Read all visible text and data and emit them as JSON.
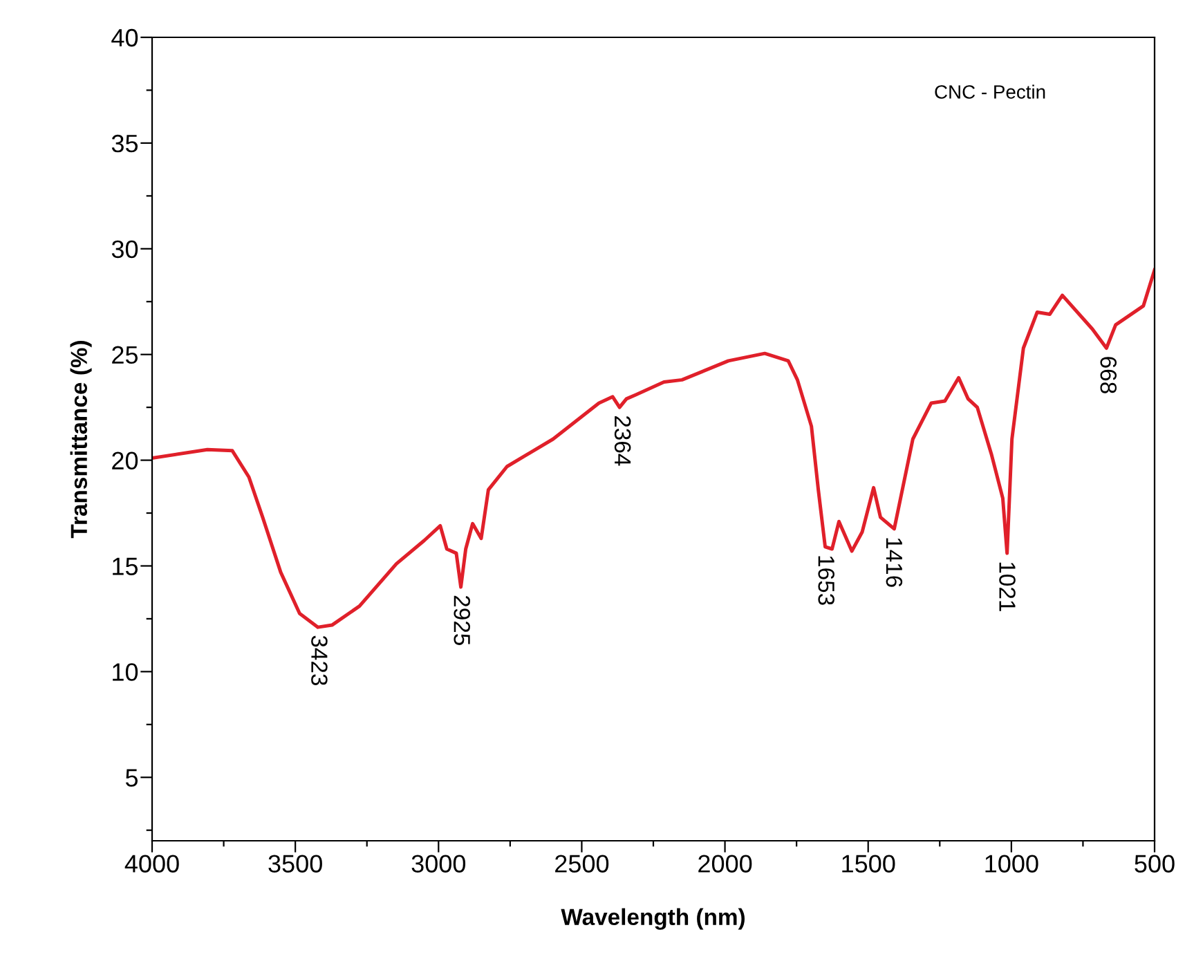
{
  "chart_data": {
    "type": "line",
    "xlabel": "Wavelength (nm)",
    "ylabel": "Transmittance (%)",
    "xlim": [
      4000,
      500
    ],
    "ylim": [
      2,
      40
    ],
    "xticks": [
      4000,
      {
        "value": 3750,
        "label": null
      },
      3500,
      {
        "value": 3250,
        "label": null
      },
      3000,
      {
        "value": 2750,
        "label": null
      },
      2500,
      {
        "value": 2250,
        "label": null
      },
      2000,
      {
        "value": 1750,
        "label": null
      },
      1500,
      {
        "value": 1250,
        "label": null
      },
      1000,
      {
        "value": 750,
        "label": null
      },
      500
    ],
    "yticks": [
      {
        "value": 2.5,
        "label": null
      },
      5,
      {
        "value": 7.5,
        "label": null
      },
      10,
      {
        "value": 12.5,
        "label": null
      },
      15,
      {
        "value": 17.5,
        "label": null
      },
      20,
      {
        "value": 22.5,
        "label": null
      },
      25,
      {
        "value": 27.5,
        "label": null
      },
      30,
      {
        "value": 32.5,
        "label": null
      },
      35,
      {
        "value": 37.5,
        "label": null
      },
      40
    ],
    "grid": false,
    "legend": false,
    "marker": "none",
    "line_style": "solid",
    "series": [
      {
        "color": "#e0202a",
        "x": [
          4000,
          3807,
          3720,
          3662,
          3614,
          3551,
          3485,
          3421,
          3372,
          3276,
          3147,
          3050,
          2994,
          2971,
          2938,
          2922,
          2905,
          2881,
          2851,
          2826,
          2761,
          2600,
          2440,
          2392,
          2368,
          2344,
          2310,
          2213,
          2150,
          1988,
          1861,
          1779,
          1747,
          1698,
          1674,
          1650,
          1626,
          1602,
          1557,
          1521,
          1481,
          1457,
          1409,
          1344,
          1280,
          1232,
          1184,
          1151,
          1119,
          1070,
          1030,
          1015,
          998,
          958,
          910,
          866,
          822,
          717,
          668,
          636,
          539,
          500
        ],
        "values": [
          20.1,
          20.5,
          20.45,
          19.2,
          17.3,
          14.7,
          12.75,
          12.1,
          12.2,
          13.1,
          15.1,
          16.2,
          16.9,
          15.8,
          15.6,
          14.0,
          15.8,
          17.0,
          16.3,
          18.6,
          19.7,
          21.0,
          22.7,
          23.0,
          22.5,
          22.9,
          23.1,
          23.7,
          23.8,
          24.7,
          25.05,
          24.7,
          23.8,
          21.6,
          18.6,
          15.9,
          15.8,
          17.1,
          15.7,
          16.6,
          18.7,
          17.3,
          16.75,
          21.0,
          22.7,
          22.8,
          23.9,
          22.9,
          22.5,
          20.3,
          18.2,
          15.6,
          21.0,
          25.3,
          27.0,
          26.9,
          27.8,
          26.2,
          25.3,
          26.4,
          27.3,
          29.0
        ]
      }
    ],
    "annotations": [
      {
        "text": "3423",
        "x": 3423,
        "y": 12.1
      },
      {
        "text": "2925",
        "x": 2925,
        "y": 14.0
      },
      {
        "text": "2364",
        "x": 2364,
        "y": 22.5
      },
      {
        "text": "1653",
        "x": 1653,
        "y": 15.9
      },
      {
        "text": "1416",
        "x": 1416,
        "y": 16.75
      },
      {
        "text": "1021",
        "x": 1021,
        "y": 15.6
      },
      {
        "text": "668",
        "x": 668,
        "y": 25.3
      },
      "CNC - Pectin"
    ]
  }
}
